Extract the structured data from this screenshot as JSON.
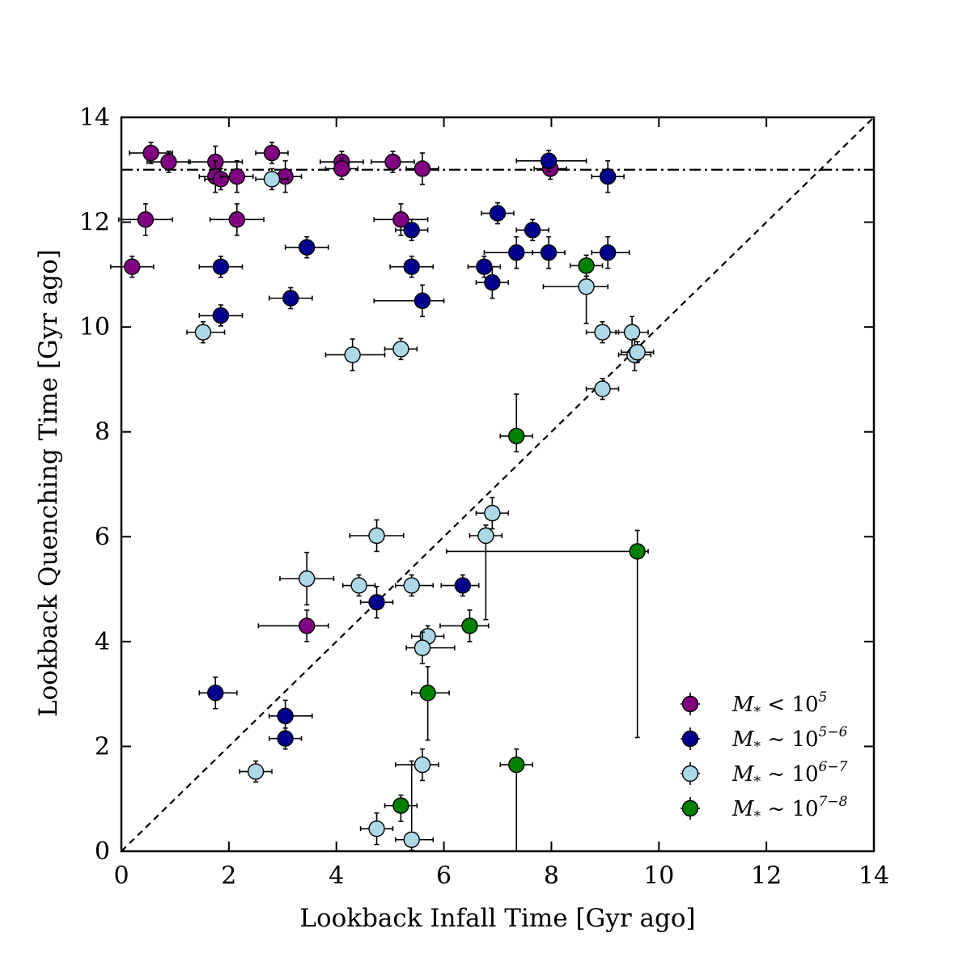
{
  "chart_data": {
    "type": "scatter",
    "xlabel": "Lookback Infall Time [Gyr ago]",
    "ylabel": "Lookback Quenching Time [Gyr ago]",
    "xlim": [
      0,
      14
    ],
    "ylim": [
      0,
      14
    ],
    "xticks": [
      0,
      2,
      4,
      6,
      8,
      10,
      12,
      14
    ],
    "yticks": [
      0,
      2,
      4,
      6,
      8,
      10,
      12,
      14
    ],
    "grid": false,
    "legend_position": "lower-right",
    "reference_lines": [
      {
        "kind": "diagonal",
        "style": "dashed",
        "from": [
          0,
          0
        ],
        "to": [
          14,
          14
        ]
      },
      {
        "kind": "horizontal",
        "style": "dash-dot",
        "y": 13.0
      }
    ],
    "series": [
      {
        "name": "M* < 10^5",
        "legend_parts": [
          "M",
          "*",
          " < 10",
          "5"
        ],
        "color": "#800080",
        "points": [
          {
            "x": 0.55,
            "y": 13.32,
            "xerr": [
              0.4,
              0.4
            ],
            "yerr": [
              0.2,
              0.2
            ]
          },
          {
            "x": 0.88,
            "y": 13.15,
            "xerr": [
              0.4,
              0.4
            ],
            "yerr": [
              0.2,
              0.2
            ]
          },
          {
            "x": 1.75,
            "y": 13.15,
            "xerr": [
              0.5,
              0.5
            ],
            "yerr": [
              0.2,
              0.3
            ]
          },
          {
            "x": 1.75,
            "y": 12.87,
            "xerr": [
              0.3,
              0.3
            ],
            "yerr": [
              0.3,
              0.3
            ]
          },
          {
            "x": 1.85,
            "y": 12.82,
            "xerr": [
              0.3,
              0.3
            ],
            "yerr": [
              0.2,
              0.2
            ]
          },
          {
            "x": 2.15,
            "y": 12.87,
            "xerr": [
              0.3,
              0.3
            ],
            "yerr": [
              0.3,
              0.3
            ]
          },
          {
            "x": 2.8,
            "y": 13.32,
            "xerr": [
              0.3,
              0.3
            ],
            "yerr": [
              0.2,
              0.2
            ]
          },
          {
            "x": 3.05,
            "y": 12.87,
            "xerr": [
              0.3,
              0.3
            ],
            "yerr": [
              0.3,
              0.3
            ]
          },
          {
            "x": 4.1,
            "y": 13.15,
            "xerr": [
              0.4,
              0.4
            ],
            "yerr": [
              0.2,
              0.2
            ]
          },
          {
            "x": 4.1,
            "y": 13.02,
            "xerr": [
              0.3,
              0.3
            ],
            "yerr": [
              0.2,
              0.2
            ]
          },
          {
            "x": 5.05,
            "y": 13.15,
            "xerr": [
              0.4,
              0.4
            ],
            "yerr": [
              0.2,
              0.2
            ]
          },
          {
            "x": 5.6,
            "y": 13.02,
            "xerr": [
              0.3,
              0.3
            ],
            "yerr": [
              0.3,
              0.3
            ]
          },
          {
            "x": 7.98,
            "y": 13.02,
            "xerr": [
              0.3,
              0.3
            ],
            "yerr": [
              0.2,
              0.2
            ]
          },
          {
            "x": 0.45,
            "y": 12.05,
            "xerr": [
              0.5,
              0.5
            ],
            "yerr": [
              0.3,
              0.3
            ]
          },
          {
            "x": 2.15,
            "y": 12.05,
            "xerr": [
              0.5,
              0.5
            ],
            "yerr": [
              0.3,
              0.3
            ]
          },
          {
            "x": 5.2,
            "y": 12.05,
            "xerr": [
              0.5,
              0.5
            ],
            "yerr": [
              0.3,
              0.3
            ]
          },
          {
            "x": 0.2,
            "y": 11.15,
            "xerr": [
              0.4,
              0.4
            ],
            "yerr": [
              0.2,
              0.2
            ]
          },
          {
            "x": 3.45,
            "y": 4.3,
            "xerr": [
              0.9,
              0.4
            ],
            "yerr": [
              0.3,
              0.3
            ]
          }
        ]
      },
      {
        "name": "M* ~ 10^5-6",
        "legend_parts": [
          "M",
          "*",
          " ~ 10",
          "5−6"
        ],
        "color": "#00008b",
        "points": [
          {
            "x": 7.95,
            "y": 13.17,
            "xerr": [
              0.6,
              0.7
            ],
            "yerr": [
              0.2,
              0.2
            ]
          },
          {
            "x": 9.05,
            "y": 12.87,
            "xerr": [
              0.3,
              0.3
            ],
            "yerr": [
              0.3,
              0.3
            ]
          },
          {
            "x": 7.0,
            "y": 12.17,
            "xerr": [
              0.3,
              0.3
            ],
            "yerr": [
              0.2,
              0.2
            ]
          },
          {
            "x": 5.4,
            "y": 11.85,
            "xerr": [
              0.3,
              0.3
            ],
            "yerr": [
              0.2,
              0.2
            ]
          },
          {
            "x": 7.65,
            "y": 11.85,
            "xerr": [
              0.3,
              0.3
            ],
            "yerr": [
              0.2,
              0.2
            ]
          },
          {
            "x": 3.45,
            "y": 11.52,
            "xerr": [
              0.4,
              0.4
            ],
            "yerr": [
              0.2,
              0.2
            ]
          },
          {
            "x": 7.35,
            "y": 11.42,
            "xerr": [
              0.6,
              0.5
            ],
            "yerr": [
              0.3,
              0.3
            ]
          },
          {
            "x": 7.95,
            "y": 11.42,
            "xerr": [
              0.3,
              0.3
            ],
            "yerr": [
              0.3,
              0.3
            ]
          },
          {
            "x": 9.05,
            "y": 11.42,
            "xerr": [
              0.3,
              0.4
            ],
            "yerr": [
              0.3,
              0.3
            ]
          },
          {
            "x": 1.85,
            "y": 11.15,
            "xerr": [
              0.4,
              0.4
            ],
            "yerr": [
              0.2,
              0.2
            ]
          },
          {
            "x": 5.4,
            "y": 11.15,
            "xerr": [
              0.4,
              0.4
            ],
            "yerr": [
              0.2,
              0.2
            ]
          },
          {
            "x": 6.75,
            "y": 11.15,
            "xerr": [
              0.3,
              0.3
            ],
            "yerr": [
              0.2,
              0.2
            ]
          },
          {
            "x": 6.9,
            "y": 10.85,
            "xerr": [
              0.3,
              0.3
            ],
            "yerr": [
              0.3,
              0.3
            ]
          },
          {
            "x": 3.15,
            "y": 10.55,
            "xerr": [
              0.4,
              0.4
            ],
            "yerr": [
              0.2,
              0.2
            ]
          },
          {
            "x": 5.6,
            "y": 10.5,
            "xerr": [
              0.9,
              0.4
            ],
            "yerr": [
              0.3,
              0.3
            ]
          },
          {
            "x": 1.85,
            "y": 10.22,
            "xerr": [
              0.4,
              0.4
            ],
            "yerr": [
              0.2,
              0.2
            ]
          },
          {
            "x": 6.35,
            "y": 5.07,
            "xerr": [
              0.4,
              0.3
            ],
            "yerr": [
              0.2,
              0.2
            ]
          },
          {
            "x": 4.75,
            "y": 4.75,
            "xerr": [
              0.3,
              0.3
            ],
            "yerr": [
              0.3,
              0.3
            ]
          },
          {
            "x": 1.75,
            "y": 3.02,
            "xerr": [
              0.3,
              0.4
            ],
            "yerr": [
              0.3,
              0.3
            ]
          },
          {
            "x": 3.05,
            "y": 2.58,
            "xerr": [
              0.3,
              0.5
            ],
            "yerr": [
              0.3,
              0.3
            ]
          },
          {
            "x": 3.05,
            "y": 2.15,
            "xerr": [
              0.3,
              0.3
            ],
            "yerr": [
              0.2,
              0.2
            ]
          }
        ]
      },
      {
        "name": "M* ~ 10^6-7",
        "legend_parts": [
          "M",
          "*",
          " ~ 10",
          "6−7"
        ],
        "color": "#add8e6",
        "points": [
          {
            "x": 2.8,
            "y": 12.82,
            "xerr": [
              0.3,
              0.3
            ],
            "yerr": [
              0.2,
              0.2
            ]
          },
          {
            "x": 8.65,
            "y": 10.77,
            "xerr": [
              0.8,
              0.4
            ],
            "yerr": [
              0.7,
              0.2
            ]
          },
          {
            "x": 1.52,
            "y": 9.9,
            "xerr": [
              0.3,
              0.4
            ],
            "yerr": [
              0.2,
              0.2
            ]
          },
          {
            "x": 8.95,
            "y": 9.9,
            "xerr": [
              0.3,
              0.3
            ],
            "yerr": [
              0.2,
              0.2
            ]
          },
          {
            "x": 9.5,
            "y": 9.9,
            "xerr": [
              0.3,
              0.3
            ],
            "yerr": [
              0.3,
              0.3
            ]
          },
          {
            "x": 9.55,
            "y": 9.47,
            "xerr": [
              0.3,
              0.3
            ],
            "yerr": [
              0.3,
              0.3
            ]
          },
          {
            "x": 9.6,
            "y": 9.52,
            "xerr": [
              0.3,
              0.3
            ],
            "yerr": [
              0.2,
              0.2
            ]
          },
          {
            "x": 4.3,
            "y": 9.47,
            "xerr": [
              0.5,
              0.6
            ],
            "yerr": [
              0.3,
              0.3
            ]
          },
          {
            "x": 5.2,
            "y": 9.58,
            "xerr": [
              0.3,
              0.3
            ],
            "yerr": [
              0.2,
              0.2
            ]
          },
          {
            "x": 8.95,
            "y": 8.82,
            "xerr": [
              0.3,
              0.3
            ],
            "yerr": [
              0.2,
              0.2
            ]
          },
          {
            "x": 6.9,
            "y": 6.45,
            "xerr": [
              0.3,
              0.3
            ],
            "yerr": [
              0.3,
              0.3
            ]
          },
          {
            "x": 6.78,
            "y": 6.02,
            "xerr": [
              0.3,
              0.3
            ],
            "yerr": [
              1.6,
              0.2
            ]
          },
          {
            "x": 4.75,
            "y": 6.02,
            "xerr": [
              0.5,
              0.5
            ],
            "yerr": [
              0.3,
              0.3
            ]
          },
          {
            "x": 3.45,
            "y": 5.2,
            "xerr": [
              0.5,
              0.5
            ],
            "yerr": [
              0.5,
              0.5
            ]
          },
          {
            "x": 4.42,
            "y": 5.07,
            "xerr": [
              0.3,
              0.3
            ],
            "yerr": [
              0.2,
              0.2
            ]
          },
          {
            "x": 5.4,
            "y": 5.07,
            "xerr": [
              0.3,
              0.4
            ],
            "yerr": [
              0.2,
              0.2
            ]
          },
          {
            "x": 5.7,
            "y": 4.1,
            "xerr": [
              0.3,
              0.3
            ],
            "yerr": [
              0.2,
              0.2
            ]
          },
          {
            "x": 5.6,
            "y": 3.88,
            "xerr": [
              0.3,
              0.6
            ],
            "yerr": [
              0.3,
              0.3
            ]
          },
          {
            "x": 2.5,
            "y": 1.52,
            "xerr": [
              0.3,
              0.3
            ],
            "yerr": [
              0.2,
              0.2
            ]
          },
          {
            "x": 5.6,
            "y": 1.65,
            "xerr": [
              0.5,
              0.3
            ],
            "yerr": [
              0.3,
              0.3
            ]
          },
          {
            "x": 4.75,
            "y": 0.43,
            "xerr": [
              0.3,
              0.3
            ],
            "yerr": [
              0.3,
              0.3
            ]
          },
          {
            "x": 5.4,
            "y": 0.22,
            "xerr": [
              0.3,
              0.4
            ],
            "yerr": [
              0.2,
              1.5
            ]
          }
        ]
      },
      {
        "name": "M* ~ 10^7-8",
        "legend_parts": [
          "M",
          "*",
          " ~ 10",
          "7−8"
        ],
        "color": "#008000",
        "points": [
          {
            "x": 8.65,
            "y": 11.17,
            "xerr": [
              0.3,
              0.3
            ],
            "yerr": [
              0.2,
              0.2
            ]
          },
          {
            "x": 7.35,
            "y": 7.92,
            "xerr": [
              0.3,
              0.3
            ],
            "yerr": [
              0.3,
              0.8
            ]
          },
          {
            "x": 9.6,
            "y": 5.72,
            "xerr": [
              3.55,
              0.2
            ],
            "yerr": [
              3.55,
              0.4
            ]
          },
          {
            "x": 6.48,
            "y": 4.3,
            "xerr": [
              0.55,
              0.35
            ],
            "yerr": [
              0.3,
              0.3
            ]
          },
          {
            "x": 5.7,
            "y": 3.02,
            "xerr": [
              0.3,
              0.4
            ],
            "yerr": [
              0.9,
              0.5
            ]
          },
          {
            "x": 7.35,
            "y": 1.65,
            "xerr": [
              0.3,
              0.3
            ],
            "yerr": [
              1.65,
              0.3
            ]
          },
          {
            "x": 5.2,
            "y": 0.87,
            "xerr": [
              0.3,
              0.3
            ],
            "yerr": [
              0.3,
              0.2
            ]
          }
        ]
      }
    ]
  }
}
